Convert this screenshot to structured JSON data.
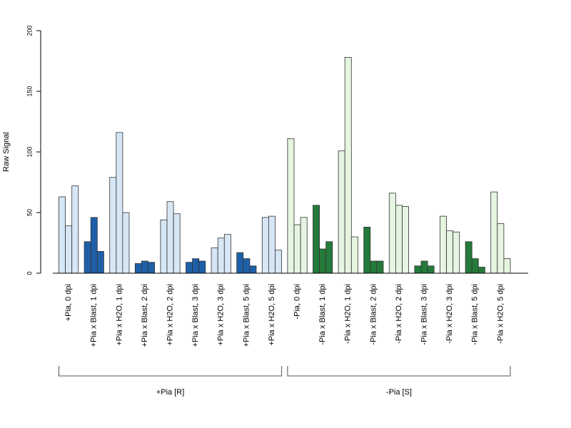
{
  "chart_data": {
    "type": "bar",
    "ylabel": "Raw Signal",
    "xlabel": "",
    "ylim": [
      0,
      200
    ],
    "yticks": [
      0,
      50,
      100,
      150,
      200
    ],
    "grid": false,
    "categories": [
      "+Pia, 0 dpi",
      "+Pia x Blast, 1 dpi",
      "+Pia x H2O, 1 dpi",
      "+Pia x Blast, 2 dpi",
      "+Pia x H2O, 2 dpi",
      "+Pia x Blast, 3 dpi",
      "+Pia x H2O, 3 dpi",
      "+Pia x Blast, 5 dpi",
      "+Pia x H2O, 5 dpi",
      "-Pia, 0 dpi",
      "-Pia x Blast, 1 dpi",
      "-Pia x H2O, 1 dpi",
      "-Pia x Blast, 2 dpi",
      "-Pia x H2O, 2 dpi",
      "-Pia x Blast, 3 dpi",
      "-Pia x H2O, 3 dpi",
      "-Pia x Blast, 5 dpi",
      "-Pia x H2O, 5 dpi"
    ],
    "replicate_values": [
      [
        63,
        39,
        72
      ],
      [
        26,
        46,
        18
      ],
      [
        79,
        116,
        50
      ],
      [
        8,
        10,
        9
      ],
      [
        44,
        59,
        49
      ],
      [
        9,
        12,
        10
      ],
      [
        21,
        29,
        32
      ],
      [
        17,
        12,
        6
      ],
      [
        46,
        47,
        19
      ],
      [
        111,
        40,
        46
      ],
      [
        56,
        20,
        26
      ],
      [
        101,
        178,
        30
      ],
      [
        38,
        10,
        10
      ],
      [
        66,
        56,
        55
      ],
      [
        6,
        10,
        6
      ],
      [
        47,
        35,
        34
      ],
      [
        26,
        12,
        5
      ],
      [
        67,
        41,
        12
      ]
    ],
    "bar_colors": [
      "#d6e6f5",
      "#1f5fa8",
      "#d6e6f5",
      "#1f5fa8",
      "#d6e6f5",
      "#1f5fa8",
      "#d6e6f5",
      "#1f5fa8",
      "#d6e6f5",
      "#e5f5e0",
      "#247a3a",
      "#e5f5e0",
      "#247a3a",
      "#e5f5e0",
      "#247a3a",
      "#e5f5e0",
      "#247a3a",
      "#e5f5e0"
    ],
    "groups": [
      {
        "label": "+Pia [R]",
        "start": 0,
        "end": 8
      },
      {
        "label": "-Pia [S]",
        "start": 9,
        "end": 17
      }
    ]
  }
}
